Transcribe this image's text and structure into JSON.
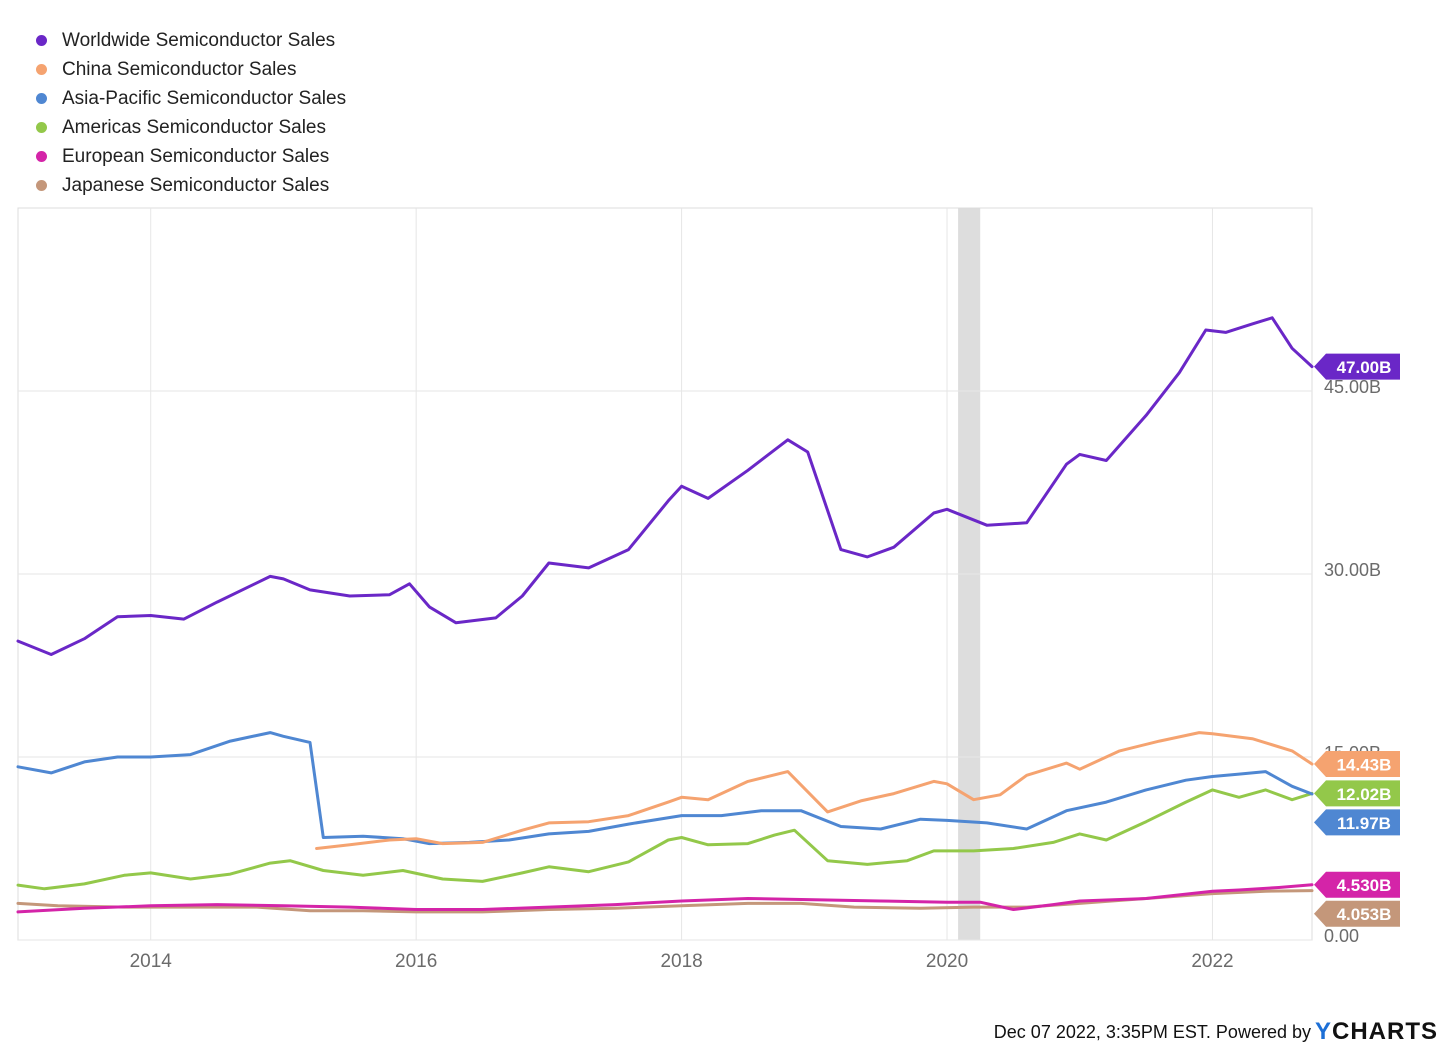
{
  "footer": {
    "text": "Dec 07 2022, 3:35PM EST. Powered by",
    "brand_y": "Y",
    "brand_rest": "CHARTS"
  },
  "chart_data": {
    "type": "line",
    "x_range": [
      "2013-01",
      "2022-10"
    ],
    "y_range": [
      0,
      60
    ],
    "y_ticks": [
      {
        "value": 0,
        "label": "0.00"
      },
      {
        "value": 15,
        "label": "15.00B"
      },
      {
        "value": 30,
        "label": "30.00B"
      },
      {
        "value": 45,
        "label": "45.00B"
      }
    ],
    "x_ticks": [
      "2014",
      "2016",
      "2018",
      "2020",
      "2022"
    ],
    "grid": true,
    "legend_position": "top-left",
    "recession_band": [
      "2020-02",
      "2020-04"
    ],
    "series": [
      {
        "name": "Worldwide Semiconductor Sales",
        "color": "#6a27c7",
        "end_label": "47.00B",
        "values": [
          [
            2013.0,
            24.5
          ],
          [
            2013.25,
            23.4
          ],
          [
            2013.5,
            24.7
          ],
          [
            2013.75,
            26.5
          ],
          [
            2014.0,
            26.6
          ],
          [
            2014.25,
            26.3
          ],
          [
            2014.5,
            27.7
          ],
          [
            2014.9,
            29.8
          ],
          [
            2015.0,
            29.6
          ],
          [
            2015.2,
            28.7
          ],
          [
            2015.5,
            28.2
          ],
          [
            2015.8,
            28.3
          ],
          [
            2015.95,
            29.2
          ],
          [
            2016.1,
            27.3
          ],
          [
            2016.3,
            26.0
          ],
          [
            2016.6,
            26.4
          ],
          [
            2016.8,
            28.2
          ],
          [
            2017.0,
            30.9
          ],
          [
            2017.3,
            30.5
          ],
          [
            2017.6,
            32.0
          ],
          [
            2017.9,
            36.0
          ],
          [
            2018.0,
            37.2
          ],
          [
            2018.2,
            36.2
          ],
          [
            2018.5,
            38.5
          ],
          [
            2018.8,
            41.0
          ],
          [
            2018.95,
            40.0
          ],
          [
            2019.2,
            32.0
          ],
          [
            2019.4,
            31.4
          ],
          [
            2019.6,
            32.2
          ],
          [
            2019.9,
            35.0
          ],
          [
            2020.0,
            35.3
          ],
          [
            2020.3,
            34.0
          ],
          [
            2020.6,
            34.2
          ],
          [
            2020.9,
            39.0
          ],
          [
            2021.0,
            39.8
          ],
          [
            2021.2,
            39.3
          ],
          [
            2021.5,
            43.0
          ],
          [
            2021.75,
            46.5
          ],
          [
            2021.95,
            50.0
          ],
          [
            2022.1,
            49.8
          ],
          [
            2022.3,
            50.5
          ],
          [
            2022.45,
            51.0
          ],
          [
            2022.6,
            48.5
          ],
          [
            2022.75,
            47.0
          ]
        ]
      },
      {
        "name": "China Semiconductor Sales",
        "color": "#f5a370",
        "end_label": "14.43B",
        "values": [
          [
            2015.25,
            7.5
          ],
          [
            2015.5,
            7.8
          ],
          [
            2015.8,
            8.2
          ],
          [
            2016.0,
            8.3
          ],
          [
            2016.2,
            7.9
          ],
          [
            2016.5,
            8.0
          ],
          [
            2016.8,
            9.0
          ],
          [
            2017.0,
            9.6
          ],
          [
            2017.3,
            9.7
          ],
          [
            2017.6,
            10.2
          ],
          [
            2017.9,
            11.3
          ],
          [
            2018.0,
            11.7
          ],
          [
            2018.2,
            11.5
          ],
          [
            2018.5,
            13.0
          ],
          [
            2018.8,
            13.8
          ],
          [
            2019.1,
            10.5
          ],
          [
            2019.35,
            11.4
          ],
          [
            2019.6,
            12.0
          ],
          [
            2019.9,
            13.0
          ],
          [
            2020.0,
            12.8
          ],
          [
            2020.2,
            11.5
          ],
          [
            2020.4,
            11.9
          ],
          [
            2020.6,
            13.5
          ],
          [
            2020.9,
            14.5
          ],
          [
            2021.0,
            14.0
          ],
          [
            2021.3,
            15.5
          ],
          [
            2021.6,
            16.3
          ],
          [
            2021.9,
            17.0
          ],
          [
            2022.0,
            16.9
          ],
          [
            2022.3,
            16.5
          ],
          [
            2022.6,
            15.5
          ],
          [
            2022.75,
            14.43
          ]
        ]
      },
      {
        "name": "Asia-Pacific Semiconductor Sales",
        "color": "#4f87d2",
        "end_label": "11.97B",
        "values": [
          [
            2013.0,
            14.2
          ],
          [
            2013.25,
            13.7
          ],
          [
            2013.5,
            14.6
          ],
          [
            2013.75,
            15.0
          ],
          [
            2014.0,
            15.0
          ],
          [
            2014.3,
            15.2
          ],
          [
            2014.6,
            16.3
          ],
          [
            2014.9,
            17.0
          ],
          [
            2015.0,
            16.7
          ],
          [
            2015.2,
            16.2
          ],
          [
            2015.3,
            8.4
          ],
          [
            2015.6,
            8.5
          ],
          [
            2015.9,
            8.3
          ],
          [
            2016.1,
            7.9
          ],
          [
            2016.4,
            8.0
          ],
          [
            2016.7,
            8.2
          ],
          [
            2017.0,
            8.7
          ],
          [
            2017.3,
            8.9
          ],
          [
            2017.6,
            9.5
          ],
          [
            2018.0,
            10.2
          ],
          [
            2018.3,
            10.2
          ],
          [
            2018.6,
            10.6
          ],
          [
            2018.9,
            10.6
          ],
          [
            2019.2,
            9.3
          ],
          [
            2019.5,
            9.1
          ],
          [
            2019.8,
            9.9
          ],
          [
            2020.0,
            9.8
          ],
          [
            2020.3,
            9.6
          ],
          [
            2020.6,
            9.1
          ],
          [
            2020.9,
            10.6
          ],
          [
            2021.2,
            11.3
          ],
          [
            2021.5,
            12.3
          ],
          [
            2021.8,
            13.1
          ],
          [
            2022.0,
            13.4
          ],
          [
            2022.2,
            13.6
          ],
          [
            2022.4,
            13.8
          ],
          [
            2022.6,
            12.6
          ],
          [
            2022.75,
            11.97
          ]
        ]
      },
      {
        "name": "Americas Semiconductor Sales",
        "color": "#93c84a",
        "end_label": "12.02B",
        "values": [
          [
            2013.0,
            4.5
          ],
          [
            2013.2,
            4.2
          ],
          [
            2013.5,
            4.6
          ],
          [
            2013.8,
            5.3
          ],
          [
            2014.0,
            5.5
          ],
          [
            2014.3,
            5.0
          ],
          [
            2014.6,
            5.4
          ],
          [
            2014.9,
            6.3
          ],
          [
            2015.05,
            6.5
          ],
          [
            2015.3,
            5.7
          ],
          [
            2015.6,
            5.3
          ],
          [
            2015.9,
            5.7
          ],
          [
            2016.2,
            5.0
          ],
          [
            2016.5,
            4.8
          ],
          [
            2016.8,
            5.5
          ],
          [
            2017.0,
            6.0
          ],
          [
            2017.3,
            5.6
          ],
          [
            2017.6,
            6.4
          ],
          [
            2017.9,
            8.2
          ],
          [
            2018.0,
            8.4
          ],
          [
            2018.2,
            7.8
          ],
          [
            2018.5,
            7.9
          ],
          [
            2018.7,
            8.6
          ],
          [
            2018.85,
            9.0
          ],
          [
            2019.1,
            6.5
          ],
          [
            2019.4,
            6.2
          ],
          [
            2019.7,
            6.5
          ],
          [
            2019.9,
            7.3
          ],
          [
            2020.2,
            7.3
          ],
          [
            2020.5,
            7.5
          ],
          [
            2020.8,
            8.0
          ],
          [
            2021.0,
            8.7
          ],
          [
            2021.2,
            8.2
          ],
          [
            2021.5,
            9.7
          ],
          [
            2021.8,
            11.3
          ],
          [
            2022.0,
            12.3
          ],
          [
            2022.2,
            11.7
          ],
          [
            2022.4,
            12.3
          ],
          [
            2022.6,
            11.5
          ],
          [
            2022.75,
            12.02
          ]
        ]
      },
      {
        "name": "European Semiconductor Sales",
        "color": "#d424a8",
        "end_label": "4.530B",
        "values": [
          [
            2013.0,
            2.3
          ],
          [
            2013.5,
            2.6
          ],
          [
            2014.0,
            2.8
          ],
          [
            2014.5,
            2.9
          ],
          [
            2015.0,
            2.8
          ],
          [
            2015.5,
            2.7
          ],
          [
            2016.0,
            2.5
          ],
          [
            2016.5,
            2.5
          ],
          [
            2017.0,
            2.7
          ],
          [
            2017.5,
            2.9
          ],
          [
            2018.0,
            3.2
          ],
          [
            2018.5,
            3.4
          ],
          [
            2019.0,
            3.3
          ],
          [
            2019.5,
            3.2
          ],
          [
            2020.0,
            3.1
          ],
          [
            2020.25,
            3.1
          ],
          [
            2020.5,
            2.5
          ],
          [
            2020.8,
            2.9
          ],
          [
            2021.0,
            3.2
          ],
          [
            2021.5,
            3.4
          ],
          [
            2022.0,
            4.0
          ],
          [
            2022.2,
            4.1
          ],
          [
            2022.5,
            4.3
          ],
          [
            2022.75,
            4.53
          ]
        ]
      },
      {
        "name": "Japanese Semiconductor Sales",
        "color": "#c4977a",
        "end_label": "4.053B",
        "values": [
          [
            2013.0,
            3.0
          ],
          [
            2013.3,
            2.8
          ],
          [
            2013.8,
            2.7
          ],
          [
            2014.3,
            2.7
          ],
          [
            2014.8,
            2.7
          ],
          [
            2015.2,
            2.4
          ],
          [
            2015.6,
            2.4
          ],
          [
            2016.0,
            2.3
          ],
          [
            2016.5,
            2.3
          ],
          [
            2017.0,
            2.5
          ],
          [
            2017.5,
            2.6
          ],
          [
            2018.0,
            2.8
          ],
          [
            2018.5,
            3.0
          ],
          [
            2018.9,
            3.0
          ],
          [
            2019.3,
            2.7
          ],
          [
            2019.8,
            2.6
          ],
          [
            2020.2,
            2.7
          ],
          [
            2020.6,
            2.7
          ],
          [
            2021.0,
            3.0
          ],
          [
            2021.5,
            3.4
          ],
          [
            2022.0,
            3.8
          ],
          [
            2022.4,
            4.0
          ],
          [
            2022.75,
            4.053
          ]
        ]
      }
    ]
  }
}
